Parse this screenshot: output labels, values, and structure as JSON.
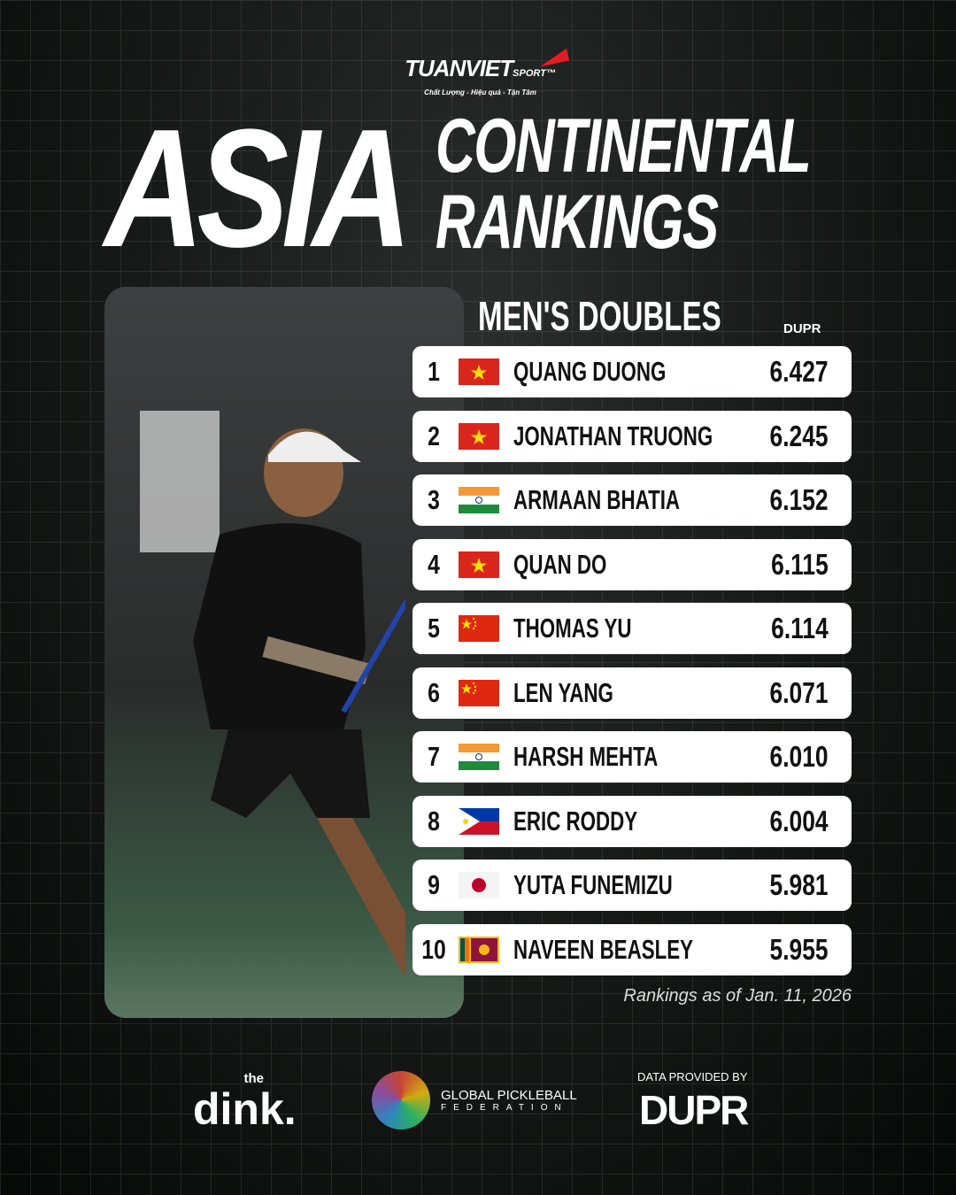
{
  "brand": {
    "name": "TUANVIET",
    "suffix": "SPORT",
    "tm": "™",
    "tagline": "Chất Lượng - Hiệu quả - Tận Tâm"
  },
  "title": {
    "big": "ASIA",
    "line1": "CONTINENTAL",
    "line2": "RANKINGS"
  },
  "category": "MEN'S DOUBLES",
  "score_header": "DUPR",
  "rankings": [
    {
      "rank": "1",
      "flag": "vietnam-flag",
      "name": "QUANG DUONG",
      "score": "6.427"
    },
    {
      "rank": "2",
      "flag": "vietnam-flag",
      "name": "JONATHAN TRUONG",
      "score": "6.245"
    },
    {
      "rank": "3",
      "flag": "india-flag",
      "name": "ARMAAN BHATIA",
      "score": "6.152"
    },
    {
      "rank": "4",
      "flag": "vietnam-flag",
      "name": "QUAN DO",
      "score": "6.115"
    },
    {
      "rank": "5",
      "flag": "china-flag",
      "name": "THOMAS YU",
      "score": "6.114"
    },
    {
      "rank": "6",
      "flag": "china-flag",
      "name": "LEN YANG",
      "score": "6.071"
    },
    {
      "rank": "7",
      "flag": "india-flag",
      "name": "HARSH MEHTA",
      "score": "6.010"
    },
    {
      "rank": "8",
      "flag": "philippines-flag",
      "name": "ERIC RODDY",
      "score": "6.004"
    },
    {
      "rank": "9",
      "flag": "japan-flag",
      "name": "YUTA FUNEMIZU",
      "score": "5.981"
    },
    {
      "rank": "10",
      "flag": "sri-lanka-flag",
      "name": "NAVEEN BEASLEY",
      "score": "5.955"
    }
  ],
  "as_of": "Rankings as of Jan. 11, 2026",
  "sponsors": {
    "dink_the": "the",
    "dink": "dink.",
    "gpf_line1": "GLOBAL PICKLEBALL",
    "gpf_line2": "FEDERATION",
    "data_by": "DATA PROVIDED BY",
    "dupr": "DUPR"
  }
}
